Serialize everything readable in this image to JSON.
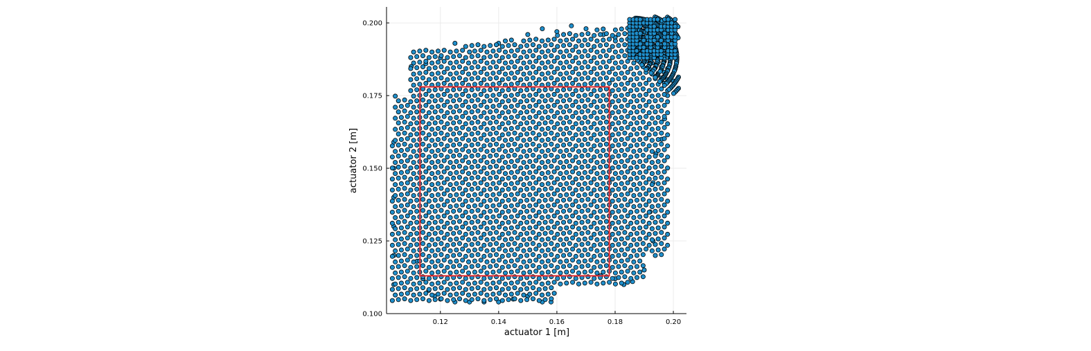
{
  "chart_data": {
    "type": "scatter",
    "title": "",
    "xlabel": "actuator 1 [m]",
    "ylabel": "actuator 2 [m]",
    "xlim": [
      0.1015,
      0.2045
    ],
    "ylim": [
      0.1,
      0.2055
    ],
    "x_ticks": [
      0.12,
      0.14,
      0.16,
      0.18,
      0.2
    ],
    "x_tick_labels": [
      "0.12",
      "0.14",
      "0.16",
      "0.18",
      "0.20"
    ],
    "y_ticks": [
      0.1,
      0.125,
      0.15,
      0.175,
      0.2
    ],
    "y_tick_labels": [
      "0.100",
      "0.125",
      "0.150",
      "0.175",
      "0.200"
    ],
    "grid": true,
    "legend": "none",
    "colors": {
      "marker_fill": "#1f8fcc",
      "marker_edge": "#000000",
      "rectangle": "#e0282e",
      "grid": "#ebebeb",
      "axis": "#000000"
    },
    "series": [
      {
        "kind": "scatter",
        "note_points": "dense grid of workspace samples; representative points listed",
        "points": [
          [
            0.112,
            0.118
          ],
          [
            0.114,
            0.112
          ],
          [
            0.116,
            0.108
          ],
          [
            0.118,
            0.106
          ],
          [
            0.12,
            0.105
          ],
          [
            0.125,
            0.104
          ],
          [
            0.13,
            0.104
          ],
          [
            0.135,
            0.104
          ],
          [
            0.14,
            0.104
          ],
          [
            0.145,
            0.105
          ],
          [
            0.15,
            0.106
          ],
          [
            0.155,
            0.104
          ],
          [
            0.158,
            0.104
          ],
          [
            0.104,
            0.159
          ],
          [
            0.104,
            0.15
          ],
          [
            0.104,
            0.14
          ],
          [
            0.104,
            0.13
          ],
          [
            0.104,
            0.12
          ],
          [
            0.104,
            0.11
          ],
          [
            0.11,
            0.185
          ],
          [
            0.115,
            0.186
          ],
          [
            0.12,
            0.188
          ],
          [
            0.125,
            0.193
          ],
          [
            0.13,
            0.19
          ],
          [
            0.14,
            0.193
          ],
          [
            0.15,
            0.196
          ],
          [
            0.155,
            0.198
          ],
          [
            0.16,
            0.197
          ],
          [
            0.165,
            0.199
          ],
          [
            0.17,
            0.198
          ],
          [
            0.176,
            0.196
          ],
          [
            0.18,
            0.195
          ],
          [
            0.185,
            0.2
          ],
          [
            0.19,
            0.2
          ],
          [
            0.195,
            0.2
          ],
          [
            0.2,
            0.2
          ],
          [
            0.201,
            0.19
          ],
          [
            0.2,
            0.18
          ],
          [
            0.198,
            0.175
          ],
          [
            0.197,
            0.167
          ],
          [
            0.196,
            0.16
          ],
          [
            0.194,
            0.155
          ],
          [
            0.193,
            0.145
          ],
          [
            0.192,
            0.135
          ],
          [
            0.193,
            0.125
          ],
          [
            0.19,
            0.115
          ],
          [
            0.186,
            0.111
          ],
          [
            0.183,
            0.11
          ],
          [
            0.18,
            0.112
          ],
          [
            0.175,
            0.113
          ]
        ]
      }
    ],
    "rectangle": {
      "x": [
        0.113,
        0.178
      ],
      "y": [
        0.113,
        0.178
      ]
    }
  }
}
